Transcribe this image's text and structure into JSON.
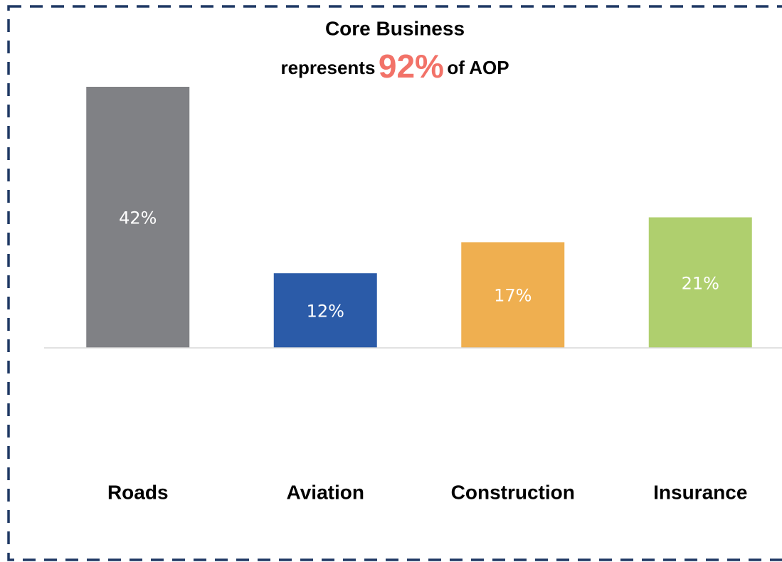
{
  "chart_data": {
    "type": "bar",
    "title": "Core Business",
    "subtitle": {
      "before": "represents",
      "highlight": "92%",
      "after": "of AOP"
    },
    "categories": [
      "Roads",
      "Aviation",
      "Construction",
      "Insurance"
    ],
    "values": [
      42,
      12,
      17,
      21
    ],
    "value_labels": [
      "42%",
      "12%",
      "17%",
      "21%"
    ],
    "colors": [
      "#808185",
      "#2b5ba8",
      "#efaf50",
      "#afcf6e"
    ],
    "ylim": [
      0,
      42
    ]
  }
}
